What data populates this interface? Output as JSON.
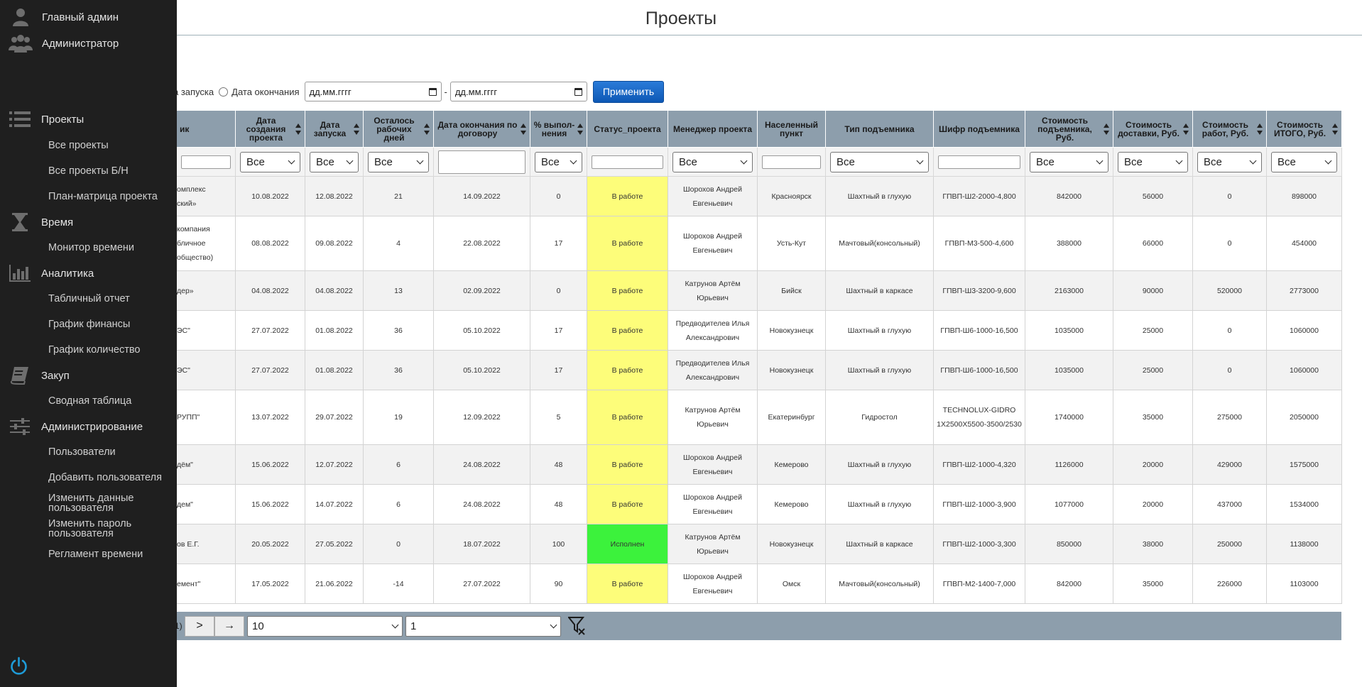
{
  "page": {
    "title": "Проекты"
  },
  "sidebar": {
    "user": "Главный админ",
    "role": "Администратор",
    "sections": {
      "projects": "Проекты",
      "time": "Время",
      "analytics": "Аналитика",
      "purchase": "Закуп",
      "admin": "Администрирование"
    },
    "items": {
      "all_projects": "Все проекты",
      "all_projects_bn": "Все проекты Б/Н",
      "plan_matrix": "План-матрица проекта",
      "time_monitor": "Монитор времени",
      "table_report": "Табличный отчет",
      "finance_chart": "График финансы",
      "count_chart": "График количество",
      "summary_table": "Сводная таблица",
      "users": "Пользователи",
      "add_user": "Добавить пользователя",
      "edit_user": "Изменить данные пользователя",
      "change_password": "Изменить пароль пользователя",
      "time_regulation": "Регламент времени"
    }
  },
  "filterbar": {
    "radio_start_label": "а запуска",
    "radio_end_label": "Дата окончания",
    "date_from_placeholder": "дд.мм.гггг",
    "dash": "-",
    "date_to_placeholder": "дд.мм.гггг",
    "apply_label": "Применить"
  },
  "table": {
    "headers": [
      "ик",
      "Дата создания проекта",
      "Дата запуска",
      "Осталось рабочих дней",
      "Дата окончания по договору",
      "% выпол-нения",
      "Статус_проекта",
      "Менеджер проекта",
      "Населенный пункт",
      "Тип подъемника",
      "Шифр подъемника",
      "Стоимость подъемника, Руб.",
      "Стоимость доставки, Руб.",
      "Стоимость работ, Руб.",
      "Стоимость ИТОГО, Руб."
    ],
    "filter_all": "Все",
    "rows": [
      {
        "client": "омплекс\nский»",
        "created": "10.08.2022",
        "start": "12.08.2022",
        "left": "21",
        "end": "14.09.2022",
        "pct": "0",
        "status": "В работе",
        "manager": "Шорохов Андрей Евгеньевич",
        "city": "Красноярск",
        "type": "Шахтный в глухую",
        "code": "ГПВП-Ш2-2000-4,800",
        "lift": "842000",
        "delivery": "56000",
        "works": "0",
        "total": "898000"
      },
      {
        "client": "компания\nбличное\nобщество)",
        "created": "08.08.2022",
        "start": "09.08.2022",
        "left": "4",
        "end": "22.08.2022",
        "pct": "17",
        "status": "В работе",
        "manager": "Шорохов Андрей Евгеньевич",
        "city": "Усть-Кут",
        "type": "Мачтовый(консольный)",
        "code": "ГПВП-М3-500-4,600",
        "lift": "388000",
        "delivery": "66000",
        "works": "0",
        "total": "454000"
      },
      {
        "client": "дер»",
        "created": "04.08.2022",
        "start": "04.08.2022",
        "left": "13",
        "end": "02.09.2022",
        "pct": "0",
        "status": "В работе",
        "manager": "Катрунов Артём Юрьевич",
        "city": "Бийск",
        "type": "Шахтный в каркасе",
        "code": "ГПВП-Ш3-3200-9,600",
        "lift": "2163000",
        "delivery": "90000",
        "works": "520000",
        "total": "2773000"
      },
      {
        "client": "ЭС\"",
        "created": "27.07.2022",
        "start": "01.08.2022",
        "left": "36",
        "end": "05.10.2022",
        "pct": "17",
        "status": "В работе",
        "manager": "Предводителев Илья Александрович",
        "city": "Новокузнецк",
        "type": "Шахтный в глухую",
        "code": "ГПВП-Ш6-1000-16,500",
        "lift": "1035000",
        "delivery": "25000",
        "works": "0",
        "total": "1060000"
      },
      {
        "client": "ЭС\"",
        "created": "27.07.2022",
        "start": "01.08.2022",
        "left": "36",
        "end": "05.10.2022",
        "pct": "17",
        "status": "В работе",
        "manager": "Предводителев Илья Александрович",
        "city": "Новокузнецк",
        "type": "Шахтный в глухую",
        "code": "ГПВП-Ш6-1000-16,500",
        "lift": "1035000",
        "delivery": "25000",
        "works": "0",
        "total": "1060000"
      },
      {
        "client": "РУПП\"",
        "created": "13.07.2022",
        "start": "29.07.2022",
        "left": "19",
        "end": "12.09.2022",
        "pct": "5",
        "status": "В работе",
        "manager": "Катрунов Артём Юрьевич",
        "city": "Екатеринбург",
        "type": "Гидростол",
        "code": "TECHNOLUX-GIDRO 1X2500X5500-3500/2530",
        "lift": "1740000",
        "delivery": "35000",
        "works": "275000",
        "total": "2050000"
      },
      {
        "client": "дём\"",
        "created": "15.06.2022",
        "start": "12.07.2022",
        "left": "6",
        "end": "24.08.2022",
        "pct": "48",
        "status": "В работе",
        "manager": "Шорохов Андрей Евгеньевич",
        "city": "Кемерово",
        "type": "Шахтный в глухую",
        "code": "ГПВП-Ш2-1000-4,320",
        "lift": "1126000",
        "delivery": "20000",
        "works": "429000",
        "total": "1575000"
      },
      {
        "client": "дем\"",
        "created": "15.06.2022",
        "start": "14.07.2022",
        "left": "6",
        "end": "24.08.2022",
        "pct": "48",
        "status": "В работе",
        "manager": "Шорохов Андрей Евгеньевич",
        "city": "Кемерово",
        "type": "Шахтный в глухую",
        "code": "ГПВП-Ш2-1000-3,900",
        "lift": "1077000",
        "delivery": "20000",
        "works": "437000",
        "total": "1534000"
      },
      {
        "client": "ов Е.Г.",
        "created": "20.05.2022",
        "start": "27.05.2022",
        "left": "0",
        "end": "18.07.2022",
        "pct": "100",
        "status": "Исполнен",
        "manager": "Катрунов Артём Юрьевич",
        "city": "Новокузнецк",
        "type": "Шахтный в каркасе",
        "code": "ГПВП-Ш2-1000-3,300",
        "lift": "850000",
        "delivery": "38000",
        "works": "250000",
        "total": "1138000"
      },
      {
        "client": "емент\"",
        "created": "17.05.2022",
        "start": "21.06.2022",
        "left": "-14",
        "end": "27.07.2022",
        "pct": "90",
        "status": "В работе",
        "manager": "Шорохов Андрей Евгеньевич",
        "city": "Омск",
        "type": "Мачтовый(консольный)",
        "code": "ГПВП-М2-1400-7,000",
        "lift": "842000",
        "delivery": "35000",
        "works": "226000",
        "total": "1103000"
      }
    ]
  },
  "pager": {
    "info": "1)",
    "next": ">",
    "last": "→",
    "page_size": "10",
    "page": "1"
  },
  "colors": {
    "sidebar_bg": "#1f1f1f",
    "header_bg": "#8d9eac",
    "status_work": "#fdfd7a",
    "status_done": "#3cf23c",
    "apply_btn": "#1565c8",
    "power_icon": "#1e9bd7"
  },
  "icons": [
    "user-icon",
    "users-icon",
    "list-icon",
    "hourglass-icon",
    "bar-chart-icon",
    "book-icon",
    "sliders-icon",
    "power-icon",
    "filter-clear-icon",
    "calendar-icon",
    "sort-icon"
  ]
}
